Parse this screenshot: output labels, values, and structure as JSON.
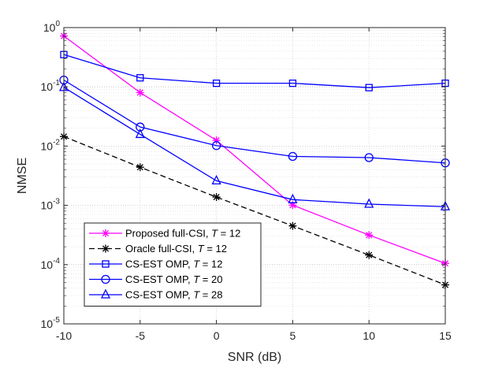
{
  "chart_data": {
    "type": "line",
    "xlabel": "SNR (dB)",
    "ylabel": "NMSE",
    "y_scale": "log",
    "xlim": [
      -10,
      15
    ],
    "ylim": [
      1e-05,
      1
    ],
    "x_ticks": [
      -10,
      -5,
      0,
      5,
      10,
      15
    ],
    "x_tick_labels": [
      "-10",
      "-5",
      "0",
      "5",
      "10",
      "15"
    ],
    "y_ticks": [
      1e-05,
      0.0001,
      0.001,
      0.01,
      0.1,
      1
    ],
    "y_tick_labels": [
      {
        "base": "10",
        "exp": "-5"
      },
      {
        "base": "10",
        "exp": "-4"
      },
      {
        "base": "10",
        "exp": "-3"
      },
      {
        "base": "10",
        "exp": "-2"
      },
      {
        "base": "10",
        "exp": "-1"
      },
      {
        "base": "10",
        "exp": "0"
      }
    ],
    "grid": true,
    "minor_grid": true,
    "legend_position": "lower-left",
    "x": [
      -10,
      -5,
      0,
      5,
      10,
      15
    ],
    "series": [
      {
        "name": "Proposed full-CSI, T = 12",
        "legend": {
          "prefix": "Proposed full-CSI, ",
          "var": "T",
          "suffix": " = 12"
        },
        "color": "#ff00ff",
        "marker": "asterisk",
        "dash": "solid",
        "values": [
          0.72,
          0.08,
          0.0125,
          0.00101,
          0.000315,
          0.000105
        ]
      },
      {
        "name": "Oracle full-CSI, T = 12",
        "legend": {
          "prefix": "Oracle full-CSI, ",
          "var": "T",
          "suffix": " = 12"
        },
        "color": "#000000",
        "marker": "asterisk",
        "dash": "dashed",
        "values": [
          0.0145,
          0.0044,
          0.00138,
          0.00045,
          0.000145,
          4.55e-05
        ]
      },
      {
        "name": "CS-EST OMP, T = 12",
        "legend": {
          "prefix": "CS-EST OMP, ",
          "var": "T",
          "suffix": " = 12"
        },
        "color": "#0000ff",
        "marker": "square",
        "dash": "solid",
        "values": [
          0.35,
          0.142,
          0.115,
          0.115,
          0.097,
          0.115
        ]
      },
      {
        "name": "CS-EST OMP, T = 20",
        "legend": {
          "prefix": "CS-EST OMP, ",
          "var": "T",
          "suffix": " = 20"
        },
        "color": "#0000ff",
        "marker": "circle",
        "dash": "solid",
        "values": [
          0.13,
          0.021,
          0.0102,
          0.0067,
          0.0064,
          0.0052
        ]
      },
      {
        "name": "CS-EST OMP, T = 28",
        "legend": {
          "prefix": "CS-EST OMP, ",
          "var": "T",
          "suffix": " = 28"
        },
        "color": "#0000ff",
        "marker": "triangle",
        "dash": "solid",
        "values": [
          0.098,
          0.0158,
          0.0026,
          0.00125,
          0.00105,
          0.00095
        ]
      }
    ]
  }
}
